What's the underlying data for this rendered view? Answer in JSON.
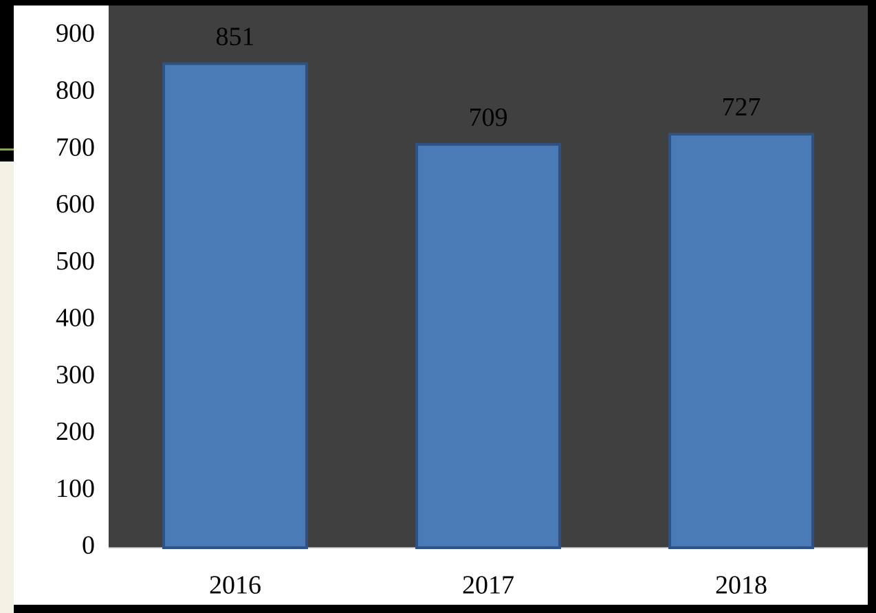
{
  "chart_data": {
    "type": "bar",
    "categories": [
      "2016",
      "2017",
      "2018"
    ],
    "values": [
      851,
      709,
      727
    ],
    "color": "#4a7bb7",
    "ylim": [
      0,
      900
    ],
    "yticks": [
      0,
      100,
      200,
      300,
      400,
      500,
      600,
      700,
      800,
      900
    ],
    "grid": false
  }
}
